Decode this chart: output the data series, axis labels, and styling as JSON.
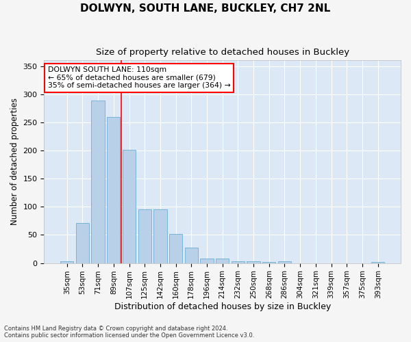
{
  "title": "DOLWYN, SOUTH LANE, BUCKLEY, CH7 2NL",
  "subtitle": "Size of property relative to detached houses in Buckley",
  "xlabel": "Distribution of detached houses by size in Buckley",
  "ylabel": "Number of detached properties",
  "categories": [
    "35sqm",
    "53sqm",
    "71sqm",
    "89sqm",
    "107sqm",
    "125sqm",
    "142sqm",
    "160sqm",
    "178sqm",
    "196sqm",
    "214sqm",
    "232sqm",
    "250sqm",
    "268sqm",
    "286sqm",
    "304sqm",
    "321sqm",
    "339sqm",
    "357sqm",
    "375sqm",
    "393sqm"
  ],
  "values": [
    3,
    71,
    289,
    260,
    201,
    96,
    96,
    52,
    27,
    8,
    8,
    3,
    3,
    2,
    3,
    0,
    0,
    0,
    0,
    0,
    2
  ],
  "bar_color": "#b8d0e8",
  "bar_edgecolor": "#6baed6",
  "bg_color": "#dce8f5",
  "grid_color": "#ffffff",
  "annotation_title": "DOLWYN SOUTH LANE: 110sqm",
  "annotation_line1": "← 65% of detached houses are smaller (679)",
  "annotation_line2": "35% of semi-detached houses are larger (364) →",
  "footer1": "Contains HM Land Registry data © Crown copyright and database right 2024.",
  "footer2": "Contains public sector information licensed under the Open Government Licence v3.0.",
  "ylim": [
    0,
    360
  ],
  "yticks": [
    0,
    50,
    100,
    150,
    200,
    250,
    300,
    350
  ],
  "vline_pos": 3.5,
  "fig_width": 6.0,
  "fig_height": 5.0,
  "fig_bg": "#f5f5f5"
}
